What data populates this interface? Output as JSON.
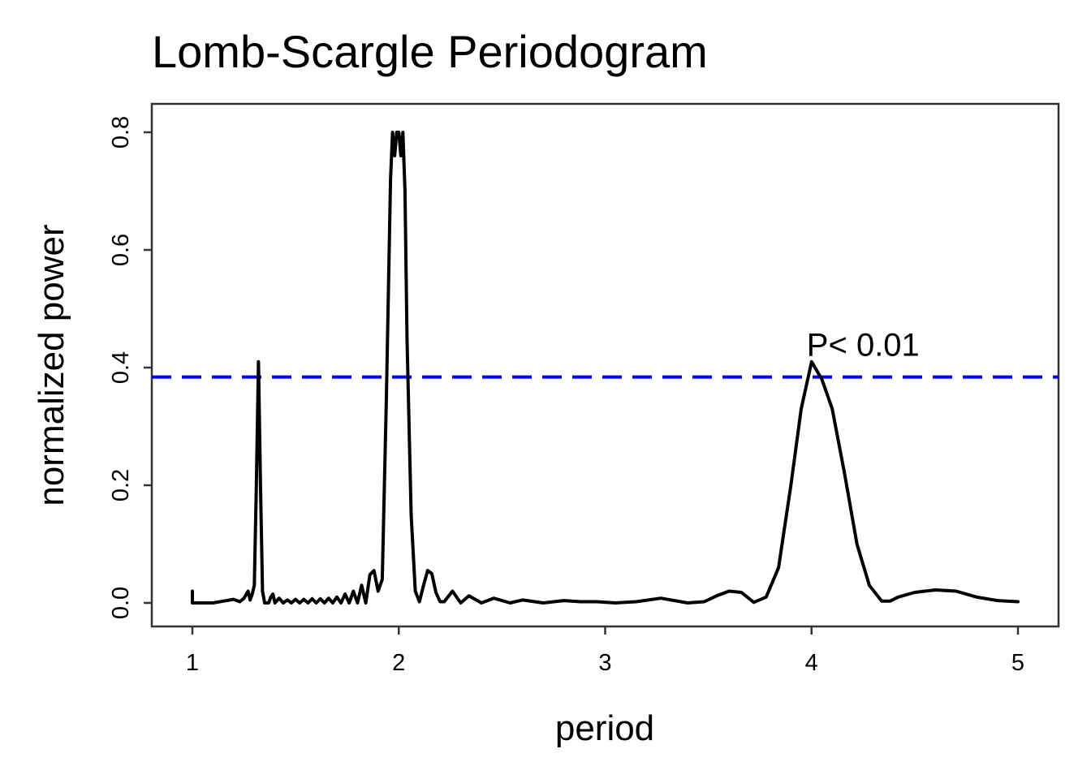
{
  "chart_data": {
    "type": "line",
    "title": "Lomb-Scargle Periodogram",
    "xlabel": "period",
    "ylabel": "normalized power",
    "xlim": [
      1,
      5
    ],
    "ylim": [
      0,
      0.8
    ],
    "x_ticks": [
      1,
      2,
      3,
      4,
      5
    ],
    "x_tick_labels": [
      "1",
      "2",
      "3",
      "4",
      "5"
    ],
    "y_ticks": [
      0,
      0.2,
      0.4,
      0.6,
      0.8
    ],
    "y_tick_labels": [
      "0.0",
      "0.2",
      "0.4",
      "0.6",
      "0.8"
    ],
    "grid": false,
    "series": [
      {
        "name": "normalized power",
        "color": "#000000",
        "x": [
          1.0,
          1.0,
          1.05,
          1.1,
          1.15,
          1.2,
          1.23,
          1.25,
          1.27,
          1.28,
          1.29,
          1.3,
          1.31,
          1.32,
          1.33,
          1.34,
          1.35,
          1.36,
          1.37,
          1.38,
          1.39,
          1.4,
          1.42,
          1.44,
          1.46,
          1.48,
          1.5,
          1.52,
          1.54,
          1.56,
          1.58,
          1.6,
          1.62,
          1.64,
          1.66,
          1.68,
          1.7,
          1.72,
          1.74,
          1.76,
          1.78,
          1.8,
          1.82,
          1.84,
          1.86,
          1.88,
          1.9,
          1.92,
          1.94,
          1.96,
          1.97,
          1.98,
          1.99,
          2.0,
          2.01,
          2.02,
          2.03,
          2.04,
          2.06,
          2.08,
          2.1,
          2.12,
          2.14,
          2.16,
          2.18,
          2.2,
          2.22,
          2.26,
          2.3,
          2.34,
          2.4,
          2.46,
          2.54,
          2.6,
          2.7,
          2.8,
          2.88,
          2.96,
          3.05,
          3.15,
          3.27,
          3.4,
          3.48,
          3.54,
          3.6,
          3.66,
          3.72,
          3.78,
          3.84,
          3.9,
          3.95,
          4.0,
          4.05,
          4.1,
          4.16,
          4.22,
          4.28,
          4.34,
          4.38,
          4.42,
          4.5,
          4.6,
          4.7,
          4.8,
          4.9,
          5.0
        ],
        "values": [
          0.02,
          0.0,
          0.0,
          0.0,
          0.003,
          0.006,
          0.002,
          0.008,
          0.02,
          0.005,
          0.015,
          0.03,
          0.2,
          0.41,
          0.2,
          0.02,
          0.0,
          0.0,
          0.0,
          0.01,
          0.015,
          0.0,
          0.008,
          0.0,
          0.005,
          0.0,
          0.006,
          0.0,
          0.006,
          0.0,
          0.007,
          0.0,
          0.007,
          0.0,
          0.008,
          0.0,
          0.01,
          0.0,
          0.015,
          0.0,
          0.02,
          0.0,
          0.03,
          0.0,
          0.048,
          0.055,
          0.02,
          0.04,
          0.35,
          0.72,
          0.8,
          0.76,
          0.8,
          0.8,
          0.76,
          0.8,
          0.7,
          0.45,
          0.15,
          0.02,
          0.002,
          0.03,
          0.055,
          0.05,
          0.018,
          0.002,
          0.002,
          0.02,
          0.0,
          0.012,
          0.0,
          0.008,
          0.0,
          0.005,
          0.0,
          0.004,
          0.002,
          0.002,
          0.0,
          0.002,
          0.008,
          0.0,
          0.002,
          0.012,
          0.02,
          0.018,
          0.001,
          0.01,
          0.06,
          0.2,
          0.33,
          0.41,
          0.38,
          0.33,
          0.22,
          0.1,
          0.03,
          0.003,
          0.003,
          0.01,
          0.018,
          0.022,
          0.02,
          0.01,
          0.004,
          0.002
        ]
      }
    ],
    "threshold": {
      "value": 0.384,
      "style": "dashed",
      "color": "#0000ff"
    },
    "annotation": {
      "text": "P< 0.01",
      "x": 4.25,
      "y": 0.42
    }
  }
}
